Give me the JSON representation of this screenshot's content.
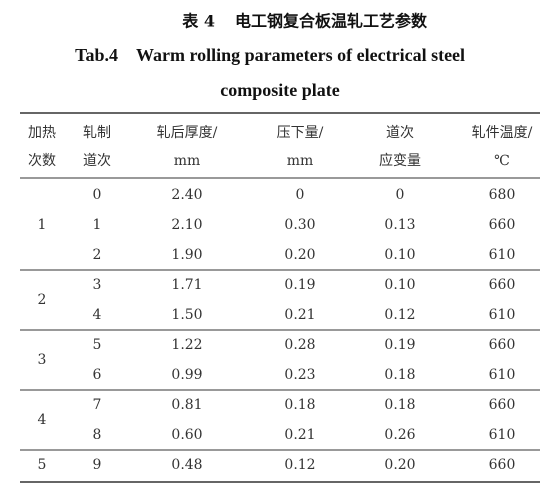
{
  "title": {
    "label": "表 4",
    "text": "电工钢复合板温轧工艺参数",
    "en_label": "Tab.4",
    "en_lines": [
      "Warm rolling parameters of electrical steel",
      "composite plate"
    ]
  },
  "table": {
    "header": [
      [
        "加热",
        "次数"
      ],
      [
        "轧制",
        "道次"
      ],
      [
        "轧后厚度/",
        "mm"
      ],
      [
        "压下量/",
        "mm"
      ],
      [
        "道次",
        "应变量"
      ],
      [
        "轧件温度/",
        "℃"
      ]
    ],
    "groups": [
      {
        "heating": "1",
        "rows": [
          [
            "0",
            "2.40",
            "0",
            "0",
            "680"
          ],
          [
            "1",
            "2.10",
            "0.30",
            "0.13",
            "660"
          ],
          [
            "2",
            "1.90",
            "0.20",
            "0.10",
            "610"
          ]
        ]
      },
      {
        "heating": "2",
        "rows": [
          [
            "3",
            "1.71",
            "0.19",
            "0.10",
            "660"
          ],
          [
            "4",
            "1.50",
            "0.21",
            "0.12",
            "610"
          ]
        ]
      },
      {
        "heating": "3",
        "rows": [
          [
            "5",
            "1.22",
            "0.28",
            "0.19",
            "660"
          ],
          [
            "6",
            "0.99",
            "0.23",
            "0.18",
            "610"
          ]
        ]
      },
      {
        "heating": "4",
        "rows": [
          [
            "7",
            "0.81",
            "0.18",
            "0.18",
            "660"
          ],
          [
            "8",
            "0.60",
            "0.21",
            "0.26",
            "610"
          ]
        ]
      },
      {
        "heating": "5",
        "rows": [
          [
            "9",
            "0.48",
            "0.12",
            "0.20",
            "660"
          ]
        ]
      }
    ]
  }
}
